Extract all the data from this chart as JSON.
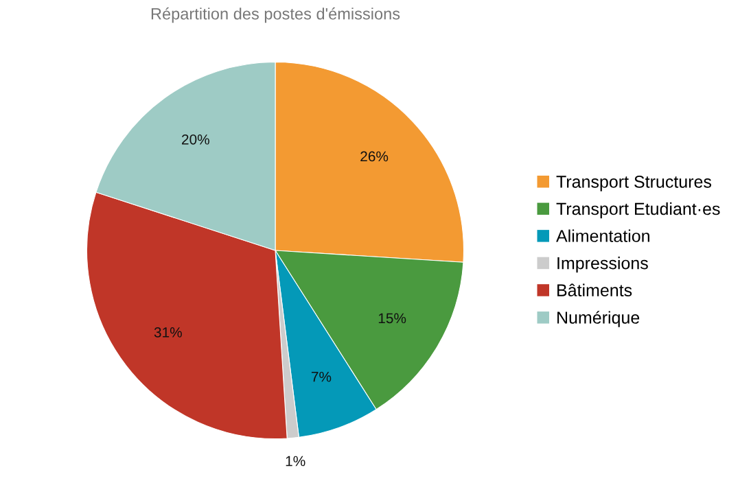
{
  "chart_data": {
    "type": "pie",
    "title": "Répartition des postes d'émissions",
    "categories": [
      "Transport Structures",
      "Transport Etudiant·es",
      "Alimentation",
      "Impressions",
      "Bâtiments",
      "Numérique"
    ],
    "values": [
      26,
      15,
      7,
      1,
      31,
      20
    ],
    "colors": [
      "#f39a32",
      "#4a9a3f",
      "#0499b8",
      "#cccccc",
      "#c03628",
      "#9ecbc5"
    ],
    "value_labels": [
      "26%",
      "15%",
      "7%",
      "1%",
      "31%",
      "20%"
    ],
    "legend": "right"
  }
}
